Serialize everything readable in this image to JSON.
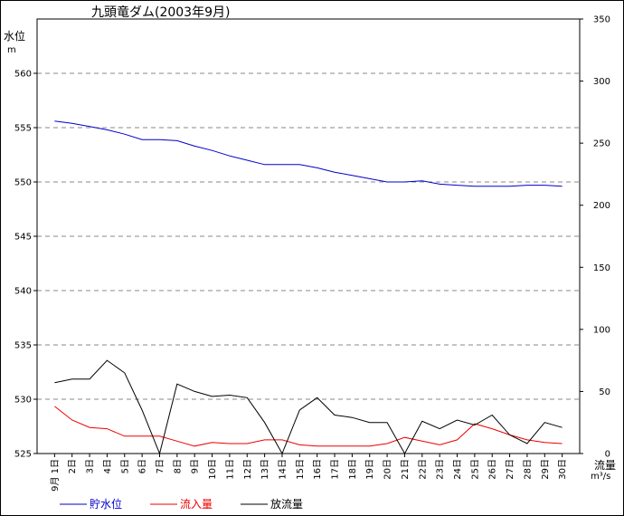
{
  "chart_data": {
    "type": "line",
    "title": "九頭竜ダム(2003年9月)",
    "y_left_label": "水位",
    "y_left_unit": "m",
    "y_right_label": "流量",
    "y_right_unit": "m³/s",
    "y_left_range": [
      525,
      565
    ],
    "y_right_range": [
      0,
      350
    ],
    "y_left_ticks": [
      "525",
      "530",
      "535",
      "540",
      "545",
      "550",
      "555",
      "560"
    ],
    "y_right_ticks": [
      "0",
      "50",
      "100",
      "150",
      "200",
      "250",
      "300",
      "350"
    ],
    "categories": [
      "9月 1日",
      "2日",
      "3日",
      "4日",
      "5日",
      "6日",
      "7日",
      "8日",
      "9日",
      "10日",
      "11日",
      "12日",
      "13日",
      "14日",
      "15日",
      "16日",
      "17日",
      "18日",
      "19日",
      "20日",
      "21日",
      "22日",
      "23日",
      "24日",
      "25日",
      "26日",
      "27日",
      "28日",
      "29日",
      "30日"
    ],
    "grid": "horizontal dashed",
    "legend_position": "bottom-left",
    "series": [
      {
        "name": "貯水位",
        "axis": "left",
        "color": "#0000cc",
        "values": [
          555.6,
          555.4,
          555.1,
          554.8,
          554.4,
          553.9,
          553.9,
          553.8,
          553.3,
          552.9,
          552.4,
          552.0,
          551.6,
          551.6,
          551.6,
          551.3,
          550.9,
          550.6,
          550.3,
          550.0,
          550.0,
          550.1,
          549.8,
          549.7,
          549.6,
          549.6,
          549.6,
          549.7,
          549.7,
          549.6
        ]
      },
      {
        "name": "流入量",
        "axis": "right",
        "color": "#ee0000",
        "values": [
          38,
          27,
          21,
          20,
          14,
          14,
          14,
          10,
          6,
          9,
          8,
          8,
          11,
          11,
          7,
          6,
          6,
          6,
          6,
          8,
          13,
          10,
          7,
          11,
          24,
          20,
          15,
          11,
          9,
          8
        ]
      },
      {
        "name": "放流量",
        "axis": "right",
        "color": "#000000",
        "values": [
          57,
          60,
          60,
          75,
          65,
          35,
          0,
          56,
          50,
          46,
          47,
          45,
          25,
          0,
          35,
          45,
          31,
          29,
          25,
          25,
          0,
          26,
          20,
          27,
          23,
          31,
          15,
          8,
          25,
          21
        ]
      }
    ]
  }
}
